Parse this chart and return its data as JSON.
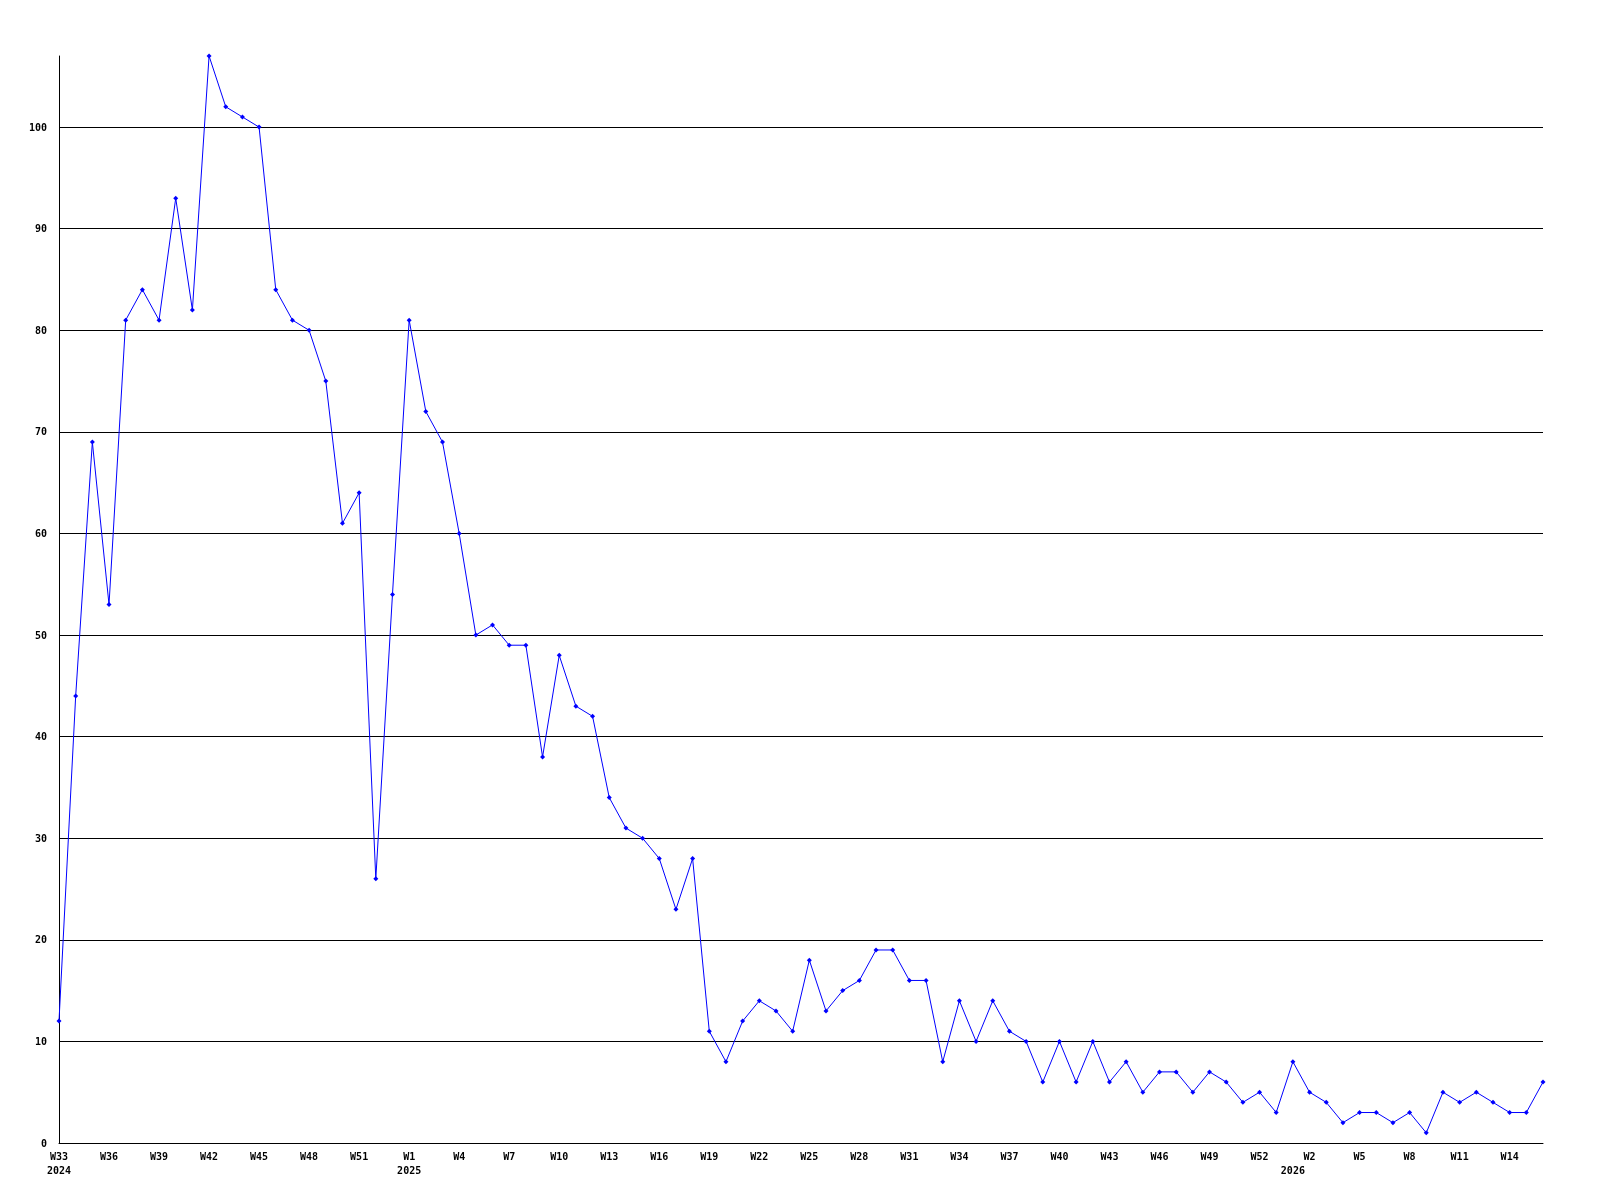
{
  "chart_data": {
    "type": "line",
    "categories": [
      "W33\n2024",
      null,
      null,
      "W36",
      null,
      null,
      "W39",
      null,
      null,
      "W42",
      null,
      null,
      "W45",
      null,
      null,
      "W48",
      null,
      null,
      "W51",
      null,
      null,
      "W1\n2025",
      null,
      null,
      "W4",
      null,
      null,
      "W7",
      null,
      null,
      "W10",
      null,
      null,
      "W13",
      null,
      null,
      "W16",
      null,
      null,
      "W19",
      null,
      null,
      "W22",
      null,
      null,
      "W25",
      null,
      null,
      "W28",
      null,
      null,
      "W31",
      null,
      null,
      "W34",
      null,
      null,
      "W37",
      null,
      null,
      "W40",
      null,
      null,
      "W43",
      null,
      null,
      "W46",
      null,
      null,
      "W49",
      null,
      null,
      "W52",
      null,
      "\n2026",
      "W2",
      null,
      null,
      "W5",
      null,
      null,
      "W8",
      null,
      null,
      "W11",
      null,
      null,
      "W14",
      null,
      null
    ],
    "series": [
      {
        "color": "#0000ff",
        "values": [
          12,
          44,
          69,
          53,
          81,
          84,
          81,
          93,
          82,
          107,
          102,
          101,
          100,
          84,
          81,
          80,
          75,
          61,
          64,
          26,
          54,
          81,
          72,
          69,
          60,
          50,
          51,
          49,
          49,
          38,
          48,
          43,
          42,
          34,
          31,
          30,
          28,
          23,
          28,
          11,
          8,
          12,
          14,
          13,
          11,
          18,
          13,
          15,
          16,
          19,
          19,
          16,
          16,
          8,
          14,
          10,
          14,
          11,
          10,
          6,
          10,
          6,
          10,
          6,
          8,
          5,
          7,
          7,
          5,
          7,
          6,
          4,
          5,
          3,
          8,
          5,
          4,
          2,
          3,
          3,
          2,
          3,
          1,
          5,
          4,
          5,
          4,
          3,
          3,
          6
        ]
      }
    ],
    "ylim": [
      0,
      107
    ],
    "yticks": [
      0,
      10,
      20,
      30,
      40,
      50,
      60,
      70,
      80,
      90,
      100
    ],
    "grid": "y",
    "marker": "diamond",
    "line_style": "solid"
  }
}
